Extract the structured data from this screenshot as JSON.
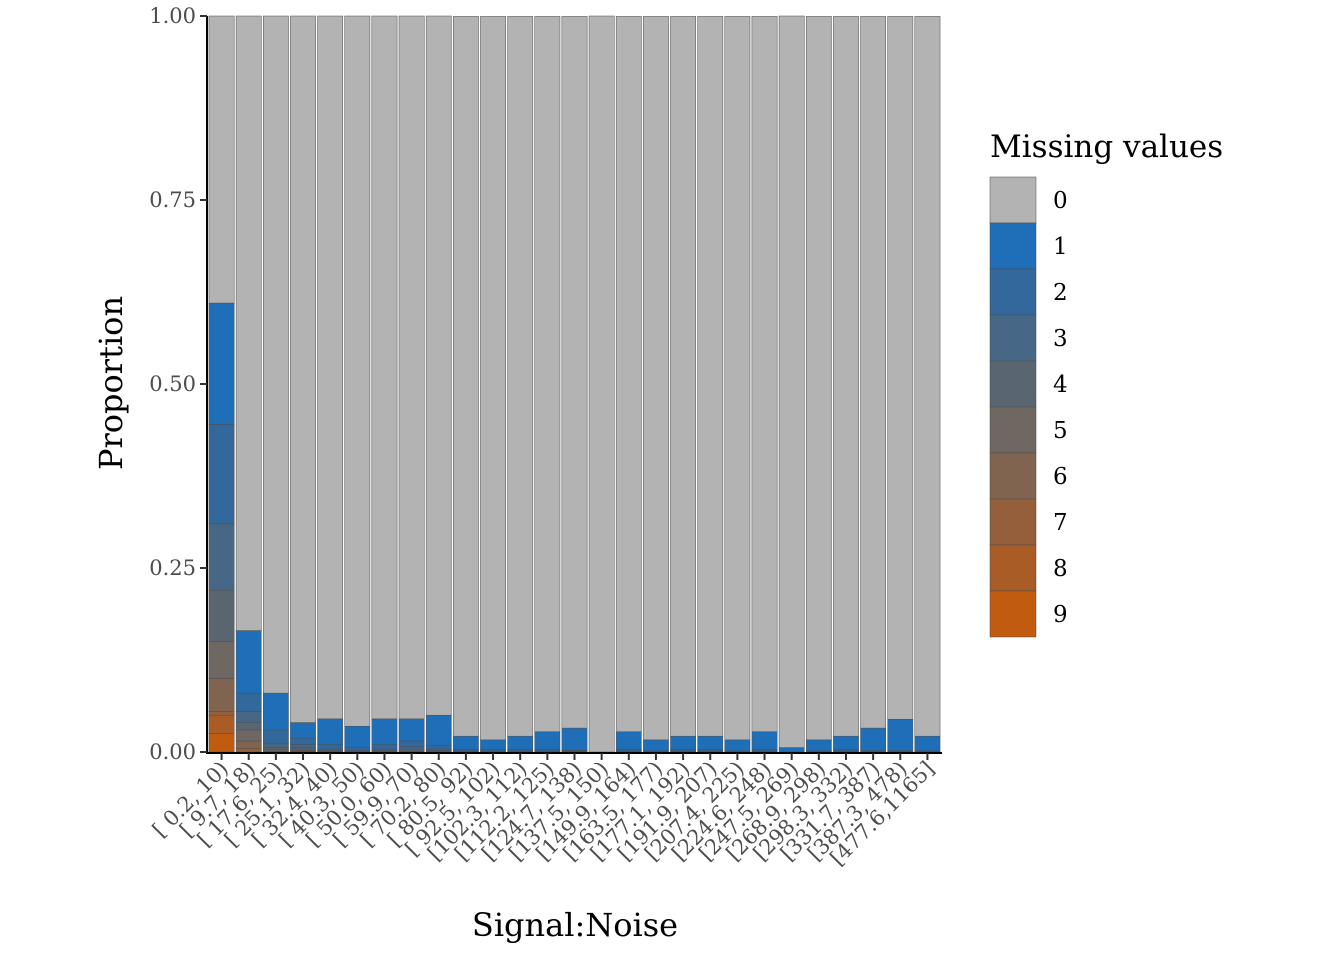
{
  "chart_data": {
    "type": "bar",
    "stacked": true,
    "title": "",
    "xlabel": "Signal:Noise",
    "ylabel": "Proportion",
    "ylim": [
      0,
      1
    ],
    "y_ticks": [
      "0.00",
      "0.25",
      "0.50",
      "0.75",
      "1.00"
    ],
    "legend_title": "Missing values",
    "legend_position": "right",
    "grid": false,
    "categories": [
      "[ 0.2, 10)",
      "[ 9.7, 18)",
      "[ 17.6, 25)",
      "[ 25.1, 32)",
      "[ 32.4, 40)",
      "[ 40.3, 50)",
      "[ 50.0, 60)",
      "[ 59.9, 70)",
      "[ 70.2, 80)",
      "[ 80.5, 92)",
      "[ 92.5, 102)",
      "[102.3, 112)",
      "[112.2, 125)",
      "[124.7, 138)",
      "[137.5, 150)",
      "[149.9, 164)",
      "[163.5, 177)",
      "[177.1, 192)",
      "[191.9, 207)",
      "[207.4, 225)",
      "[224.6, 248)",
      "[247.5, 269)",
      "[268.9, 298)",
      "[298.3, 332)",
      "[331.7, 387)",
      "[387.3, 478)",
      "[477.6,1165]"
    ],
    "series": [
      {
        "name": "0",
        "color": "#b3b3b3",
        "values": [
          0.39,
          0.835,
          0.92,
          0.96,
          0.955,
          0.965,
          0.955,
          0.955,
          0.95,
          0.978,
          0.983,
          0.978,
          0.972,
          0.967,
          1.0,
          0.972,
          0.983,
          0.978,
          0.978,
          0.983,
          0.972,
          0.994,
          0.983,
          0.978,
          0.967,
          0.955,
          0.978
        ]
      },
      {
        "name": "1",
        "color": "#1f6fb8",
        "values": [
          0.165,
          0.085,
          0.05,
          0.022,
          0.035,
          0.029,
          0.035,
          0.03,
          0.041,
          0.018,
          0.013,
          0.018,
          0.024,
          0.03,
          0.0,
          0.024,
          0.015,
          0.018,
          0.018,
          0.015,
          0.024,
          0.006,
          0.015,
          0.018,
          0.03,
          0.042,
          0.02
        ]
      },
      {
        "name": "2",
        "color": "#33689c",
        "values": [
          0.135,
          0.025,
          0.018,
          0.008,
          0.006,
          0.004,
          0.006,
          0.008,
          0.005,
          0.002,
          0.002,
          0.002,
          0.002,
          0.001,
          0.0,
          0.002,
          0.001,
          0.002,
          0.002,
          0.001,
          0.002,
          0.0,
          0.001,
          0.002,
          0.002,
          0.002,
          0.001
        ]
      },
      {
        "name": "3",
        "color": "#466886",
        "values": [
          0.09,
          0.015,
          0.006,
          0.004,
          0.002,
          0.001,
          0.002,
          0.004,
          0.002,
          0.001,
          0.001,
          0.001,
          0.001,
          0.001,
          0.0,
          0.001,
          0.0005,
          0.001,
          0.001,
          0.0005,
          0.001,
          0.0,
          0.0005,
          0.001,
          0.0005,
          0.0005,
          0.0005
        ]
      },
      {
        "name": "4",
        "color": "#5a6572",
        "values": [
          0.07,
          0.01,
          0.003,
          0.002,
          0.001,
          0.001,
          0.001,
          0.002,
          0.001,
          0.0005,
          0.0005,
          0.0005,
          0.0005,
          0.0005,
          0.0,
          0.0005,
          0.0,
          0.0005,
          0.0005,
          0.0,
          0.0005,
          0.0,
          0.0,
          0.0005,
          0.0,
          0.0,
          0.0
        ]
      },
      {
        "name": "5",
        "color": "#6e6762",
        "values": [
          0.05,
          0.015,
          0.002,
          0.002,
          0.001,
          0.0,
          0.001,
          0.001,
          0.001,
          0.0,
          0.0,
          0.0,
          0.0,
          0.0,
          0.0,
          0.0,
          0.0,
          0.0,
          0.0,
          0.0,
          0.0,
          0.0,
          0.0,
          0.0,
          0.0,
          0.0,
          0.0
        ]
      },
      {
        "name": "6",
        "color": "#806450",
        "values": [
          0.045,
          0.01,
          0.001,
          0.001,
          0.0,
          0.0,
          0.0,
          0.0,
          0.0,
          0.0,
          0.0,
          0.0,
          0.0,
          0.0,
          0.0,
          0.0,
          0.0,
          0.0,
          0.0,
          0.0,
          0.0,
          0.0,
          0.0,
          0.0,
          0.0,
          0.0,
          0.0
        ]
      },
      {
        "name": "7",
        "color": "#955f3b",
        "values": [
          0.005,
          0.005,
          0.0,
          0.001,
          0.0,
          0.0,
          0.0,
          0.0,
          0.0,
          0.0,
          0.0,
          0.0,
          0.0,
          0.0,
          0.0,
          0.0,
          0.0,
          0.0,
          0.0,
          0.0,
          0.0,
          0.0,
          0.0,
          0.0,
          0.0,
          0.0,
          0.0
        ]
      },
      {
        "name": "8",
        "color": "#aa5c26",
        "values": [
          0.025,
          0.0,
          0.0,
          0.0,
          0.0,
          0.0,
          0.0,
          0.0,
          0.0,
          0.0,
          0.0,
          0.0,
          0.0,
          0.0,
          0.0,
          0.0,
          0.0,
          0.0,
          0.0,
          0.0,
          0.0,
          0.0,
          0.0,
          0.0,
          0.0,
          0.0,
          0.0
        ]
      },
      {
        "name": "9",
        "color": "#c15b10",
        "values": [
          0.025,
          0.0,
          0.0,
          0.0,
          0.0,
          0.0,
          0.0,
          0.0,
          0.0,
          0.0,
          0.0,
          0.0,
          0.0,
          0.0,
          0.0,
          0.0,
          0.0,
          0.0,
          0.0,
          0.0,
          0.0,
          0.0,
          0.0,
          0.0,
          0.0,
          0.0,
          0.0
        ]
      }
    ]
  }
}
